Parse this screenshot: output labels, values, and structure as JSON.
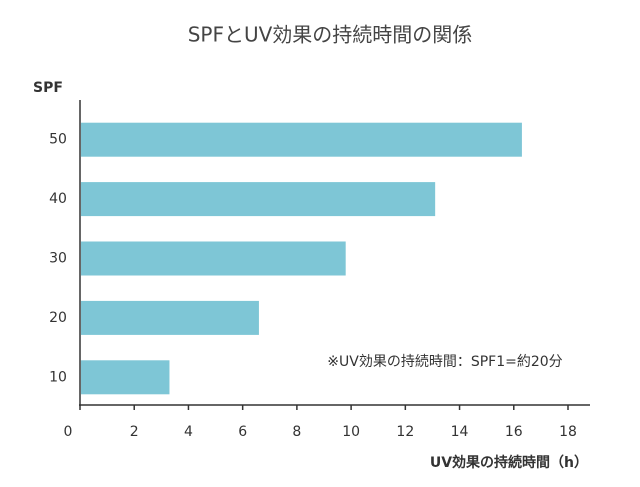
{
  "chart_data": {
    "type": "bar",
    "orientation": "horizontal",
    "title": "SPFとUV効果の持続時間の関係",
    "y_label": "SPF",
    "x_label": "UV効果の持続時間（h）",
    "annotation": "※UV効果の持続時間：SPF1=約20分",
    "categories": [
      "10",
      "20",
      "30",
      "40",
      "50"
    ],
    "values": [
      3.3,
      6.6,
      9.8,
      13.1,
      16.3
    ],
    "color": "#7ec6d6",
    "xlim": [
      0,
      18
    ],
    "xticks": [
      0,
      2,
      4,
      6,
      8,
      10,
      12,
      14,
      16,
      18
    ],
    "grid": false
  }
}
